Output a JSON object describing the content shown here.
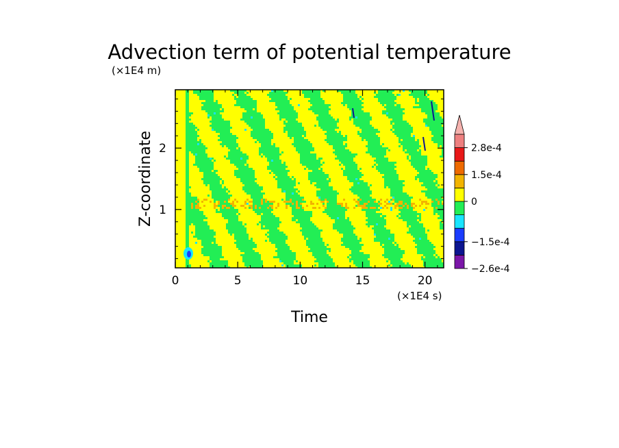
{
  "chart_data": {
    "type": "heatmap",
    "title": "Advection term of potential temperature",
    "xlabel": "Time",
    "ylabel": "Z-coordinate",
    "x_unit": "(×1E4 s)",
    "y_unit": "(×1E4 m)",
    "xlim": [
      0,
      21.5
    ],
    "ylim": [
      0.05,
      2.95
    ],
    "x_ticks": [
      0,
      5,
      10,
      15,
      20
    ],
    "y_ticks": [
      1,
      2
    ],
    "x_tick_labels": [
      "0",
      "5",
      "10",
      "15",
      "20"
    ],
    "y_tick_labels": [
      "1",
      "2"
    ],
    "colorbar": {
      "colors": [
        "#7b16a8",
        "#0c1590",
        "#1a3cff",
        "#19e4ff",
        "#22ee55",
        "#ffff00",
        "#f2b400",
        "#ee6a00",
        "#e81818",
        "#ee8080",
        "#f5b2ae"
      ],
      "tick_labels": [
        "2.8e-4",
        "1.5e-4",
        "0",
        "−1.5e-4",
        "−2.6e-4"
      ],
      "tick_values": [
        0.00028,
        0.00015,
        0,
        -0.00015,
        -0.00026
      ]
    },
    "dominant_levels": [
      "0 to 0.5e-4 (yellow)",
      "-0.5e-4 to 0 (green)"
    ]
  }
}
